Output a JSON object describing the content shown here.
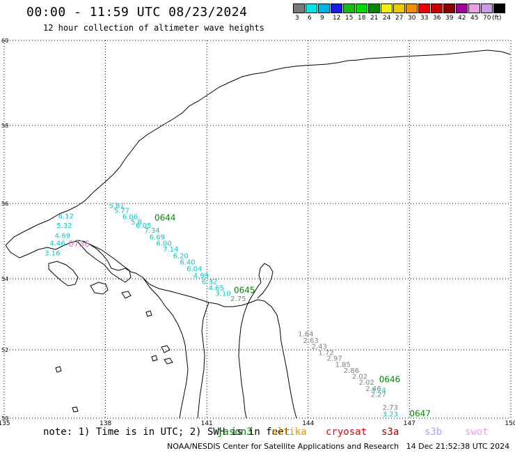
{
  "header": {
    "title": "00:00 - 11:59 UTC 08/23/2024",
    "subtitle": "12 hour collection of altimeter wave heights"
  },
  "legend": {
    "labels": [
      "3",
      "6",
      "9",
      "12",
      "15",
      "18",
      "21",
      "24",
      "27",
      "30",
      "33",
      "36",
      "39",
      "42",
      "45",
      "70",
      "(ft)"
    ],
    "colors": [
      "#7a7a7a",
      "#00e5e5",
      "#00b2e5",
      "#1a1ae5",
      "#10c010",
      "#00d800",
      "#008a00",
      "#f0f000",
      "#f0c800",
      "#f09000",
      "#f00000",
      "#c80000",
      "#8a0000",
      "#a000a0",
      "#e8a0e8",
      "#c89ae8",
      "#000000"
    ]
  },
  "map": {
    "lat_labels": [
      "60",
      "58",
      "56",
      "54",
      "52",
      "50"
    ],
    "lon_labels": [
      "135",
      "138",
      "141",
      "144",
      "147",
      "150"
    ]
  },
  "tracks": [
    {
      "name": "cyan-track",
      "color": "#00c8c8",
      "points": [
        {
          "label": "5.81",
          "lon": 138.1,
          "lat": 55.88
        },
        {
          "label": "5.77",
          "lon": 138.25,
          "lat": 55.75
        },
        {
          "label": "6.06",
          "lon": 138.5,
          "lat": 55.58
        },
        {
          "label": "5.8",
          "lon": 138.75,
          "lat": 55.44
        },
        {
          "label": "6.05",
          "lon": 138.9,
          "lat": 55.35
        },
        {
          "label": "7.34",
          "lon": 139.15,
          "lat": 55.22
        },
        {
          "label": "6.69",
          "lon": 139.3,
          "lat": 55.05
        },
        {
          "label": "6.00",
          "lon": 139.5,
          "lat": 54.88
        },
        {
          "label": "7.14",
          "lon": 139.7,
          "lat": 54.72
        },
        {
          "label": "6.20",
          "lon": 140.0,
          "lat": 54.55
        },
        {
          "label": "6.40",
          "lon": 140.2,
          "lat": 54.38
        },
        {
          "label": "6.04",
          "lon": 140.4,
          "lat": 54.2
        },
        {
          "label": "4.99",
          "lon": 140.6,
          "lat": 54.02
        },
        {
          "label": "6.32",
          "lon": 140.85,
          "lat": 53.85
        },
        {
          "label": "4.65",
          "lon": 141.05,
          "lat": 53.68
        },
        {
          "label": "3.10",
          "lon": 141.25,
          "lat": 53.52
        }
      ]
    },
    {
      "name": "cyan-track-west",
      "color": "#00c8c8",
      "points": [
        {
          "label": "6.12",
          "lon": 136.6,
          "lat": 55.6
        },
        {
          "label": "5.32",
          "lon": 136.55,
          "lat": 55.35
        },
        {
          "label": "4.69",
          "lon": 136.5,
          "lat": 55.08
        },
        {
          "label": "4.46",
          "lon": 136.35,
          "lat": 54.88
        },
        {
          "label": "3.16",
          "lon": 136.2,
          "lat": 54.62
        }
      ]
    },
    {
      "name": "grey-track",
      "color": "#808080",
      "points": [
        {
          "label": "2.75",
          "lon": 141.7,
          "lat": 53.37
        },
        {
          "label": "1.64",
          "lon": 143.7,
          "lat": 52.38
        },
        {
          "label": "2.63",
          "lon": 143.85,
          "lat": 52.2
        },
        {
          "label": "2.43",
          "lon": 144.1,
          "lat": 52.03
        },
        {
          "label": "1.72",
          "lon": 144.3,
          "lat": 51.85
        },
        {
          "label": "2.97",
          "lon": 144.55,
          "lat": 51.68
        },
        {
          "label": "1.85",
          "lon": 144.8,
          "lat": 51.5
        },
        {
          "label": "2.86",
          "lon": 145.05,
          "lat": 51.33
        },
        {
          "label": "2.02",
          "lon": 145.3,
          "lat": 51.15
        },
        {
          "label": "2.02",
          "lon": 145.5,
          "lat": 50.98
        },
        {
          "label": "2.46",
          "lon": 145.7,
          "lat": 50.8
        },
        {
          "label": "2.27",
          "lon": 145.85,
          "lat": 50.62
        },
        {
          "label": "2.73",
          "lon": 146.2,
          "lat": 50.25
        }
      ]
    },
    {
      "name": "cyan-track-east",
      "color": "#00c8c8",
      "points": [
        {
          "label": "3.24",
          "lon": 145.85,
          "lat": 50.75
        },
        {
          "label": "3.23",
          "lon": 146.2,
          "lat": 50.05
        }
      ]
    }
  ],
  "time_tags": [
    {
      "label": "0644",
      "color": "#008800",
      "lon": 139.45,
      "lat": 55.55
    },
    {
      "label": "0645",
      "color": "#008800",
      "lon": 141.8,
      "lat": 53.6
    },
    {
      "label": "0646",
      "color": "#008800",
      "lon": 146.1,
      "lat": 51.05
    },
    {
      "label": "0647",
      "color": "#008800",
      "lon": 147.0,
      "lat": 50.05
    },
    {
      "label": "0736",
      "color": "#e070d0",
      "lon": 136.9,
      "lat": 54.85
    }
  ],
  "footer": {
    "note": "note: 1) Time is in UTC; 2) SWH is in feet",
    "satellites": [
      {
        "label": "jason3",
        "color": "#008800"
      },
      {
        "label": "altika",
        "color": "#f09000"
      },
      {
        "label": "cryosat",
        "color": "#f00000"
      },
      {
        "label": "s3a",
        "color": "#a00000"
      },
      {
        "label": "s3b",
        "color": "#b4a0f0"
      },
      {
        "label": "swot",
        "color": "#f0a0e8"
      }
    ],
    "credit": "NOAA/NESDIS Center for Satellite Applications and Research   14 Dec 21:52:38 UTC 2024"
  }
}
